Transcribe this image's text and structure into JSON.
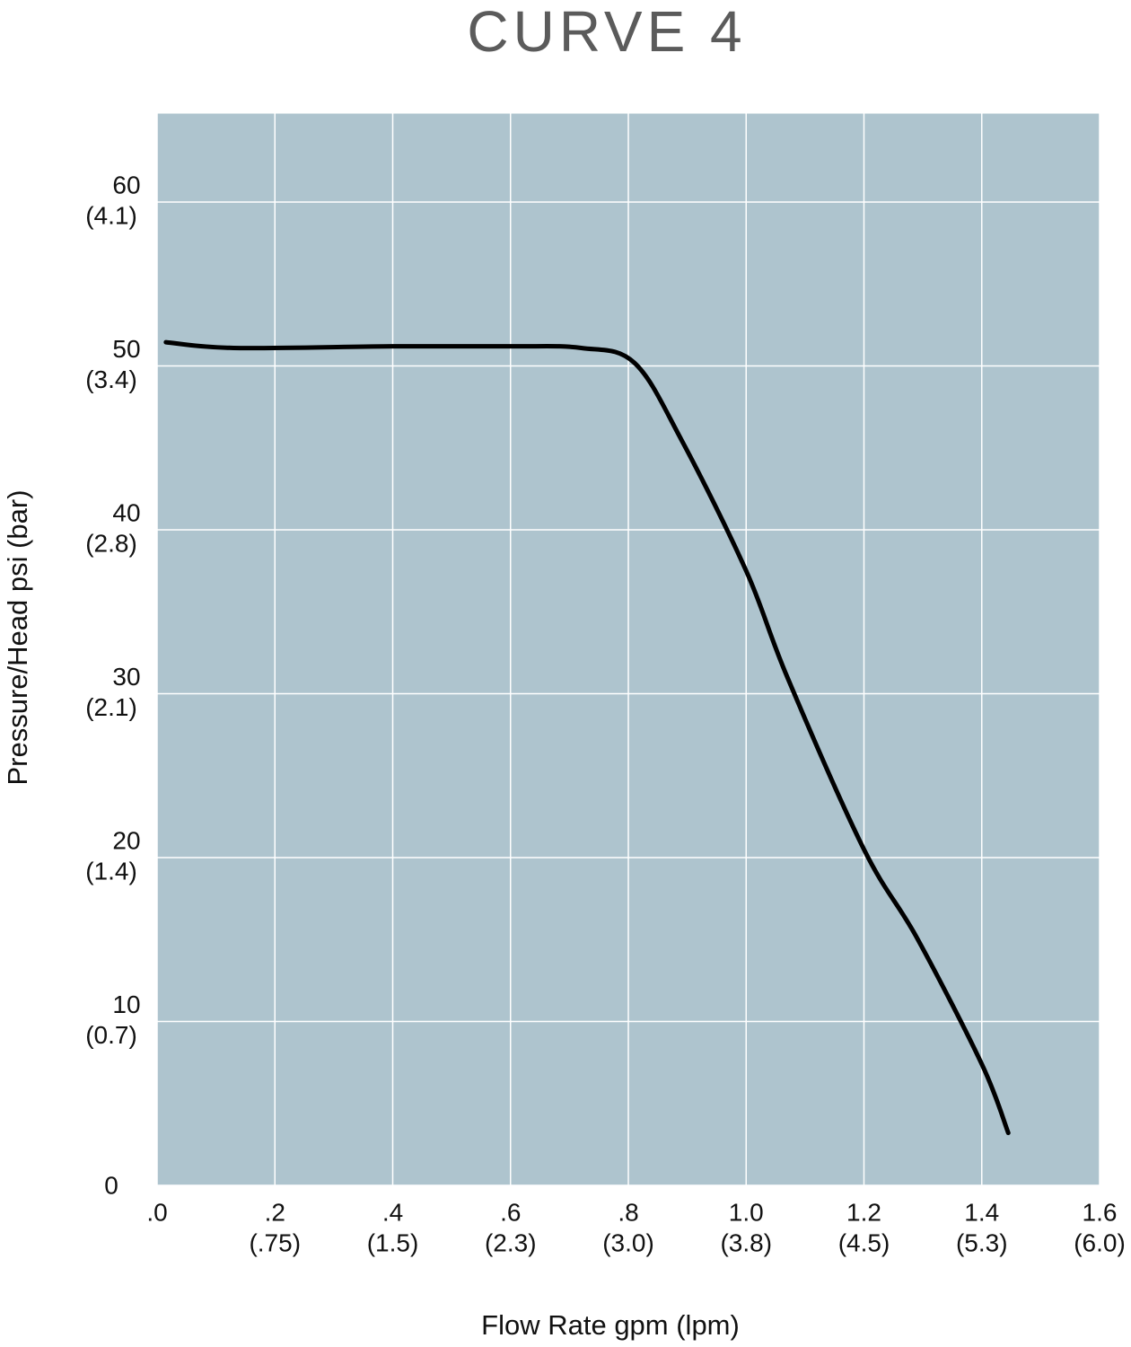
{
  "chart_data": {
    "type": "line",
    "title": "CURVE 4",
    "x_label": "Flow Rate gpm (lpm)",
    "y_label": "Pressure/Head psi (bar)",
    "xlim": [
      0,
      1.6
    ],
    "ylim": [
      0,
      65.4
    ],
    "xticks": [
      {
        "value": 0,
        "label": ".0"
      },
      {
        "value": 0.2,
        "label": ".2",
        "sublabel": "(.75)"
      },
      {
        "value": 0.4,
        "label": ".4",
        "sublabel": "(1.5)"
      },
      {
        "value": 0.6,
        "label": ".6",
        "sublabel": "(2.3)"
      },
      {
        "value": 0.8,
        "label": ".8",
        "sublabel": "(3.0)"
      },
      {
        "value": 1.0,
        "label": "1.0",
        "sublabel": "(3.8)"
      },
      {
        "value": 1.2,
        "label": "1.2",
        "sublabel": "(4.5)"
      },
      {
        "value": 1.4,
        "label": "1.4",
        "sublabel": "(5.3)"
      },
      {
        "value": 1.6,
        "label": "1.6",
        "sublabel": "(6.0)"
      }
    ],
    "yticks": [
      0,
      {
        "value": 10,
        "label": "10",
        "sublabel": "(0.7)"
      },
      {
        "value": 20,
        "label": "20",
        "sublabel": "(1.4)"
      },
      {
        "value": 30,
        "label": "30",
        "sublabel": "(2.1)"
      },
      {
        "value": 40,
        "label": "40",
        "sublabel": "(2.8)"
      },
      {
        "value": 50,
        "label": "50",
        "sublabel": "(3.4)"
      },
      {
        "value": 60,
        "label": "60",
        "sublabel": "(4.1)"
      }
    ],
    "grid": true,
    "plot_background": "#aec4ce",
    "grid_color": "#ffffff",
    "series": [
      {
        "color": "#000000",
        "x": [
          0.015,
          0.13,
          0.4,
          0.6,
          0.72,
          0.81,
          0.89,
          1.0,
          1.07,
          1.2,
          1.29,
          1.4,
          1.445
        ],
        "values": [
          51.45,
          51.1,
          51.2,
          51.2,
          51.1,
          50.2,
          45.5,
          37.5,
          31,
          20.5,
          15.1,
          7.4,
          3.2
        ]
      }
    ]
  }
}
